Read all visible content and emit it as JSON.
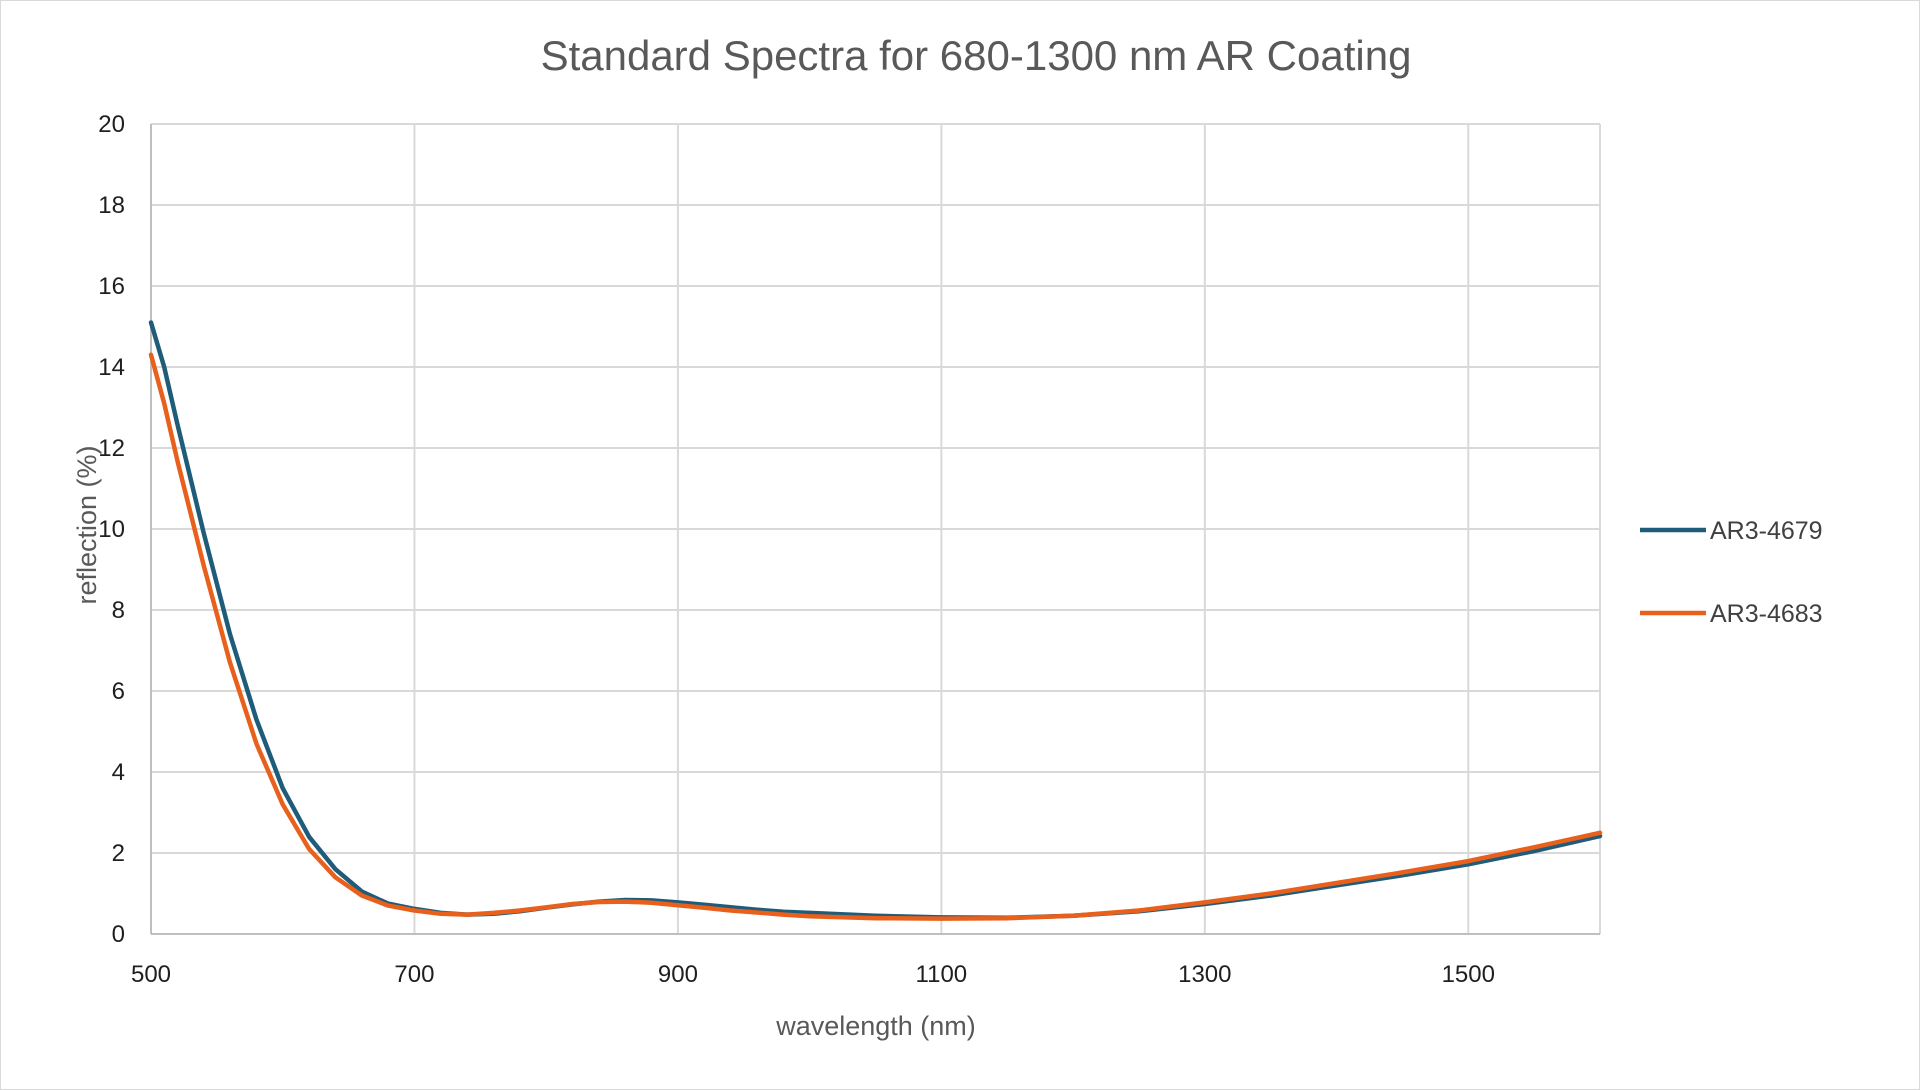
{
  "chart_data": {
    "type": "line",
    "title": "Standard Spectra for 680-1300 nm AR Coating",
    "xlabel": "wavelength (nm)",
    "ylabel": "reflection (%)",
    "xlim": [
      500,
      1600
    ],
    "ylim": [
      0,
      20
    ],
    "x_ticks": [
      500,
      700,
      900,
      1100,
      1300,
      1500
    ],
    "y_ticks": [
      0,
      2,
      4,
      6,
      8,
      10,
      12,
      14,
      16,
      18,
      20
    ],
    "grid": true,
    "legend_position": "right",
    "series": [
      {
        "name": "AR3-4679",
        "color": "#1f5c7a",
        "x": [
          500,
          510,
          520,
          540,
          560,
          580,
          600,
          620,
          640,
          660,
          680,
          700,
          720,
          740,
          760,
          780,
          800,
          820,
          840,
          860,
          880,
          900,
          920,
          940,
          960,
          980,
          1000,
          1050,
          1100,
          1150,
          1200,
          1250,
          1300,
          1350,
          1400,
          1450,
          1500,
          1550,
          1600
        ],
        "values": [
          15.1,
          14.0,
          12.6,
          9.9,
          7.4,
          5.3,
          3.6,
          2.4,
          1.6,
          1.05,
          0.75,
          0.62,
          0.52,
          0.48,
          0.5,
          0.56,
          0.65,
          0.73,
          0.8,
          0.84,
          0.83,
          0.78,
          0.72,
          0.66,
          0.6,
          0.55,
          0.52,
          0.45,
          0.41,
          0.4,
          0.45,
          0.56,
          0.74,
          0.95,
          1.2,
          1.45,
          1.72,
          2.05,
          2.42
        ]
      },
      {
        "name": "AR3-4683",
        "color": "#e8601c",
        "x": [
          500,
          510,
          520,
          540,
          560,
          580,
          600,
          620,
          640,
          660,
          680,
          700,
          720,
          740,
          760,
          780,
          800,
          820,
          840,
          860,
          880,
          900,
          920,
          940,
          960,
          980,
          1000,
          1050,
          1100,
          1150,
          1200,
          1250,
          1300,
          1350,
          1400,
          1450,
          1500,
          1550,
          1600
        ],
        "values": [
          14.3,
          13.1,
          11.7,
          9.1,
          6.7,
          4.7,
          3.2,
          2.1,
          1.4,
          0.95,
          0.7,
          0.58,
          0.5,
          0.48,
          0.52,
          0.58,
          0.66,
          0.74,
          0.79,
          0.8,
          0.77,
          0.71,
          0.65,
          0.58,
          0.53,
          0.48,
          0.44,
          0.39,
          0.38,
          0.39,
          0.45,
          0.58,
          0.78,
          1.0,
          1.26,
          1.52,
          1.8,
          2.14,
          2.5
        ]
      }
    ]
  }
}
